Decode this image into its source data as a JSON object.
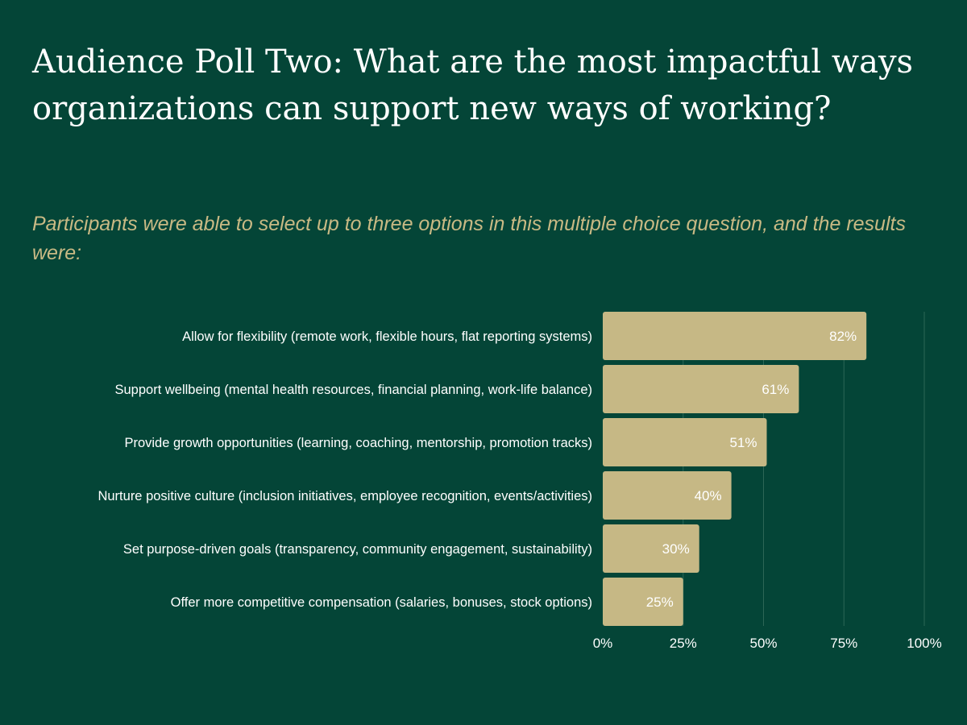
{
  "title": "Audience Poll Two: What are the most impactful ways organizations can support new ways of working?",
  "subtitle": "Participants were able to select up to three options in this multiple choice question, and the results were:",
  "colors": {
    "background": "#044537",
    "bar": "#c6b885",
    "title_text": "#ffffff",
    "subtitle_text": "#c8b984",
    "label_text": "#ffffff",
    "gridline": "#2d6656"
  },
  "chart_data": {
    "type": "bar",
    "orientation": "horizontal",
    "categories": [
      "Allow for flexibility (remote work, flexible hours, flat reporting systems)",
      "Support wellbeing (mental health resources, financial planning, work-life balance)",
      "Provide growth opportunities (learning, coaching, mentorship, promotion tracks)",
      "Nurture positive culture (inclusion initiatives, employee recognition, events/activities)",
      "Set purpose-driven goals (transparency, community engagement, sustainability)",
      "Offer more competitive compensation (salaries, bonuses, stock options)"
    ],
    "values": [
      82,
      61,
      51,
      40,
      30,
      25
    ],
    "data_labels": [
      "82%",
      "61%",
      "51%",
      "40%",
      "30%",
      "25%"
    ],
    "x_ticks": [
      "0%",
      "25%",
      "50%",
      "75%",
      "100%"
    ],
    "xlim": [
      0,
      100
    ],
    "grid": true,
    "xlabel": "",
    "ylabel": ""
  }
}
